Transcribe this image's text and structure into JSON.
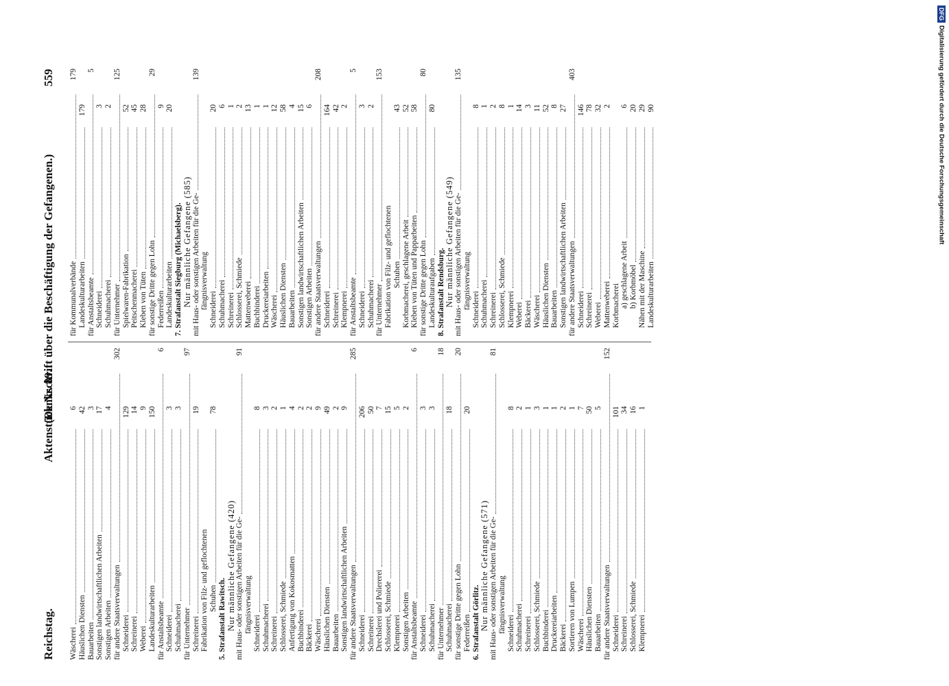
{
  "header": {
    "left": "Reichstag.",
    "middle": "Aktenstück Nr. 89.",
    "title": "(Denkschrift über die Beschäftigung der Gefangenen.)",
    "page": "559"
  },
  "columns": [
    {
      "rows": [
        {
          "kind": "plain",
          "text": "Wäscherei",
          "value": 6
        },
        {
          "kind": "plain",
          "text": "Häuslichen Diensten",
          "value": 42
        },
        {
          "kind": "plain",
          "text": "Bauarbeiten",
          "value": 3
        },
        {
          "kind": "plain",
          "text": "Sonstigen landwirtschaftlichen Arbeiten",
          "value": 17
        },
        {
          "kind": "plain",
          "text": "Sonstigen Arbeiten",
          "value": 4
        },
        {
          "kind": "group",
          "text": "für andere Staatsverwaltungen",
          "total": 302
        },
        {
          "kind": "item",
          "text": "Schneiderei",
          "value": 129
        },
        {
          "kind": "item",
          "text": "Schreinerei",
          "value": 14
        },
        {
          "kind": "item",
          "text": "Weberei",
          "value": 9
        },
        {
          "kind": "item",
          "text": "Landeskulturarbeiten",
          "value": 150
        },
        {
          "kind": "group",
          "text": "für Anstaltsbeamte",
          "total": 6
        },
        {
          "kind": "item",
          "text": "Schneiderei",
          "value": 3
        },
        {
          "kind": "item",
          "text": "Schuhmacherei",
          "value": 3
        },
        {
          "kind": "group",
          "text": "für Unternehmer",
          "total": 97
        },
        {
          "kind": "item",
          "text": "Schreinerei",
          "value": 19
        },
        {
          "kind": "item",
          "text": "Fabrikation von Filz- und geflochtenen"
        },
        {
          "kind": "wrap",
          "text": "Schuhen",
          "value": 78
        },
        {
          "kind": "heading",
          "text": "5. Strafanstalt Rawitsch."
        },
        {
          "kind": "subtitle",
          "text": "Nur männliche Gefangene (420)"
        },
        {
          "kind": "group",
          "text": "mit Haus- oder sonstigen Arbeiten für die Ge-",
          "total": 91
        },
        {
          "kind": "continuation",
          "text": "fängnisverwaltung"
        },
        {
          "kind": "item",
          "text": "Schneiderei",
          "value": 8
        },
        {
          "kind": "item",
          "text": "Schuhmacherei",
          "value": 3
        },
        {
          "kind": "item",
          "text": "Schreinerei",
          "value": 2
        },
        {
          "kind": "item",
          "text": "Schlosserei, Schmiede",
          "value": 1
        },
        {
          "kind": "item",
          "text": "Anfertigung von Kokosmatten",
          "value": 4
        },
        {
          "kind": "item",
          "text": "Buchbinderei",
          "value": 2
        },
        {
          "kind": "item",
          "text": "Bäckerei",
          "value": 2
        },
        {
          "kind": "item",
          "text": "Wäscherei",
          "value": 9
        },
        {
          "kind": "item",
          "text": "Häuslichen Diensten",
          "value": 49
        },
        {
          "kind": "item",
          "text": "Bauarbeiten",
          "value": 2
        },
        {
          "kind": "item",
          "text": "Sonstigen landwirtschaftlichen Arbeiten",
          "value": 9
        },
        {
          "kind": "group",
          "text": "für andere Staatsverwaltungen",
          "total": 285
        },
        {
          "kind": "item",
          "text": "Schneiderei",
          "value": 206
        },
        {
          "kind": "item",
          "text": "Schreinerei",
          "value": 50
        },
        {
          "kind": "item",
          "text": "Drechslerei und Poliererei",
          "value": 7
        },
        {
          "kind": "item",
          "text": "Schlosserei, Schmiede",
          "value": 15
        },
        {
          "kind": "item",
          "text": "Klempnerei",
          "value": 5
        },
        {
          "kind": "item",
          "text": "Sonstigen Arbeiten",
          "value": 2
        },
        {
          "kind": "group",
          "text": "für Anstaltsbeamte",
          "total": 6
        },
        {
          "kind": "item",
          "text": "Schneiderei",
          "value": 3
        },
        {
          "kind": "item",
          "text": "Schuhmacherei",
          "value": 3
        },
        {
          "kind": "group",
          "text": "für Unternehmer",
          "total": 18
        },
        {
          "kind": "item",
          "text": "Schuhmacherei",
          "value": 18
        },
        {
          "kind": "group",
          "text": "für sonstige Dritte gegen Lohn",
          "total": 20
        },
        {
          "kind": "item",
          "text": "Federreißen",
          "value": 20
        },
        {
          "kind": "heading",
          "text": "6. Strafanstalt Görlitz."
        },
        {
          "kind": "subtitle",
          "text": "Nur männliche Gefangene (571)"
        },
        {
          "kind": "group",
          "text": "mit Haus- oder sonstigen Arbeiten für die Ge-",
          "total": 81
        },
        {
          "kind": "continuation",
          "text": "fängnisverwaltung"
        },
        {
          "kind": "item",
          "text": "Schneiderei",
          "value": 8
        },
        {
          "kind": "item",
          "text": "Schuhmacherei",
          "value": 2
        },
        {
          "kind": "item",
          "text": "Schreinerei",
          "value": 1
        },
        {
          "kind": "item",
          "text": "Schlosserei, Schmiede",
          "value": 3
        },
        {
          "kind": "item",
          "text": "Buchbinderei",
          "value": 1
        },
        {
          "kind": "item",
          "text": "Druckereiarbeiten",
          "value": 1
        },
        {
          "kind": "item",
          "text": "Bäckerei",
          "value": 2
        },
        {
          "kind": "item",
          "text": "Sortieren von Lumpen",
          "value": 1
        },
        {
          "kind": "item",
          "text": "Wäscherei",
          "value": 7
        },
        {
          "kind": "item",
          "text": "Häuslichen Diensten",
          "value": 50
        },
        {
          "kind": "item",
          "text": "Bauarbeiten",
          "value": 5
        },
        {
          "kind": "group",
          "text": "für andere Staatsverwaltungen",
          "total": 152
        },
        {
          "kind": "item",
          "text": "Schneiderei",
          "value": 101
        },
        {
          "kind": "item",
          "text": "Schreinerei",
          "value": 34
        },
        {
          "kind": "item",
          "text": "Schlosserei, Schmiede",
          "value": 16
        },
        {
          "kind": "item",
          "text": "Klempnerei",
          "value": 1
        }
      ]
    },
    {
      "rows": [
        {
          "kind": "group",
          "text": "für Kommunalverbände",
          "total": 179
        },
        {
          "kind": "item",
          "text": "Landeskulturarbeiten",
          "value": 179
        },
        {
          "kind": "group",
          "text": "für Anstaltsbeamte",
          "total": 5
        },
        {
          "kind": "item",
          "text": "Schneiderei",
          "value": 3
        },
        {
          "kind": "item",
          "text": "Schuhmacherei",
          "value": 2
        },
        {
          "kind": "group",
          "text": "für Unternehmer",
          "total": 125
        },
        {
          "kind": "item",
          "text": "Spielwaren-Fabrikation",
          "value": 52
        },
        {
          "kind": "item",
          "text": "Peitschenmacherei",
          "value": 45
        },
        {
          "kind": "item",
          "text": "Kleben von Tüten",
          "value": 28
        },
        {
          "kind": "group",
          "text": "für sonstige Dritte gegen Lohn",
          "total": 29
        },
        {
          "kind": "item",
          "text": "Federreißen",
          "value": 9
        },
        {
          "kind": "item",
          "text": "Landeskulturarbeiten",
          "value": 20
        },
        {
          "kind": "heading",
          "text": "7. Strafanstalt Siegburg (Michaelsberg)."
        },
        {
          "kind": "subtitle",
          "text": "Nur männliche Gefangene (585)"
        },
        {
          "kind": "group",
          "text": "mit Haus- oder sonstigen Arbeiten für die Ge-",
          "total": 139
        },
        {
          "kind": "continuation",
          "text": "fängnisverwaltung"
        },
        {
          "kind": "item",
          "text": "Schneiderei",
          "value": 20
        },
        {
          "kind": "item",
          "text": "Schuhmacherei",
          "value": 6
        },
        {
          "kind": "item",
          "text": "Schreinerei",
          "value": 1
        },
        {
          "kind": "item",
          "text": "Schlosserei, Schmiede",
          "value": 2
        },
        {
          "kind": "item",
          "text": "Mattenweberei",
          "value": 13
        },
        {
          "kind": "item",
          "text": "Buchbinderei",
          "value": 1
        },
        {
          "kind": "item",
          "text": "Druckereiarbeiten",
          "value": 1
        },
        {
          "kind": "item",
          "text": "Wäscherei",
          "value": 12
        },
        {
          "kind": "item",
          "text": "Häuslichen Diensten",
          "value": 58
        },
        {
          "kind": "item",
          "text": "Bauarbeiten",
          "value": 4
        },
        {
          "kind": "item",
          "text": "Sonstigen landwirtschaftlichen Arbeiten",
          "value": 15
        },
        {
          "kind": "item",
          "text": "Sonstigen Arbeiten",
          "value": 6
        },
        {
          "kind": "group",
          "text": "für andere Staatsverwaltungen",
          "total": 208
        },
        {
          "kind": "item",
          "text": "Schneiderei",
          "value": 164
        },
        {
          "kind": "item",
          "text": "Schreinerei",
          "value": 42
        },
        {
          "kind": "item",
          "text": "Klempnerei",
          "value": 2
        },
        {
          "kind": "group",
          "text": "für Anstaltsbeamte",
          "total": 5
        },
        {
          "kind": "item",
          "text": "Schneiderei",
          "value": 3
        },
        {
          "kind": "item",
          "text": "Schuhmacherei",
          "value": 2
        },
        {
          "kind": "group",
          "text": "für Unternehmer",
          "total": 153
        },
        {
          "kind": "item",
          "text": "Fabrikation von Filz- und geflochtenen"
        },
        {
          "kind": "wrap",
          "text": "Schuhen",
          "value": 43
        },
        {
          "kind": "item",
          "text": "Korbmacherei, geschlagene Arbeit",
          "value": 52
        },
        {
          "kind": "item",
          "text": "Kleben von Tüten und Papparbeiten",
          "value": 58
        },
        {
          "kind": "group",
          "text": "für sonstige Dritte gegen Lohn",
          "total": 80
        },
        {
          "kind": "item",
          "text": "Landeskulturaufgaben",
          "value": 80
        },
        {
          "kind": "heading",
          "text": "8. Strafanstalt Rendsburg."
        },
        {
          "kind": "subtitle",
          "text": "Nur männliche Gefangene (549)"
        },
        {
          "kind": "group",
          "text": "mit Haus- oder sonstigen Arbeiten für die Ge-",
          "total": 135
        },
        {
          "kind": "continuation",
          "text": "fängnisverwaltung"
        },
        {
          "kind": "item",
          "text": "Schneiderei",
          "value": 8
        },
        {
          "kind": "item",
          "text": "Schuhmacherei",
          "value": 1
        },
        {
          "kind": "item",
          "text": "Schreinerei",
          "value": 2
        },
        {
          "kind": "item",
          "text": "Schlosserei, Schmiede",
          "value": 8
        },
        {
          "kind": "item",
          "text": "Klempnerei",
          "value": 1
        },
        {
          "kind": "item",
          "text": "Weberei",
          "value": 14
        },
        {
          "kind": "item",
          "text": "Bäckerei",
          "value": 3
        },
        {
          "kind": "item",
          "text": "Wäscherei",
          "value": 11
        },
        {
          "kind": "item",
          "text": "Häuslichen Diensten",
          "value": 52
        },
        {
          "kind": "item",
          "text": "Bauarbeiten",
          "value": 8
        },
        {
          "kind": "item",
          "text": "Sonstigen landwirtschaftlichen Arbeiten",
          "value": 27
        },
        {
          "kind": "group",
          "text": "für andere Staatsverwaltungen",
          "total": 403
        },
        {
          "kind": "item",
          "text": "Schneiderei",
          "value": 146
        },
        {
          "kind": "item",
          "text": "Schreinerei",
          "value": 78
        },
        {
          "kind": "item",
          "text": "Weberei",
          "value": 32
        },
        {
          "kind": "item",
          "text": "Mattenweberei",
          "value": 2
        },
        {
          "kind": "item",
          "text": "Korbmacherei"
        },
        {
          "kind": "subitem",
          "text": "a) geschlagene Arbeit",
          "value": 6
        },
        {
          "kind": "subitem",
          "text": "b) Korbmöbel",
          "value": 20
        },
        {
          "kind": "item",
          "text": "Nähen mit der Maschine",
          "value": 29
        },
        {
          "kind": "item",
          "text": "Landeskulturarbeiten",
          "value": 90
        }
      ]
    }
  ],
  "sidenote": {
    "logo": "DFG",
    "text": "Digitalisierung gefördert durch die Deutsche Forschungsgemeinschaft"
  }
}
